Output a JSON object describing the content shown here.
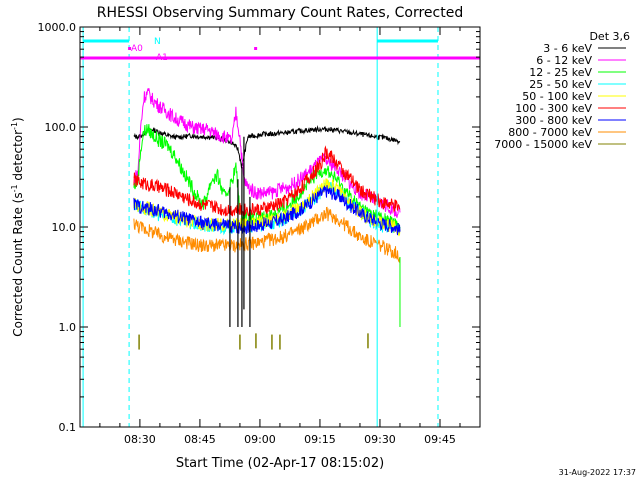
{
  "chart_data": {
    "type": "line",
    "title": "RHESSI Observing Summary Count Rates, Corrected",
    "xlabel": "Start Time (02-Apr-17 08:15:02)",
    "ylabel_main": "Corrected Count Rate (s",
    "ylabel_sup": "-1",
    "ylabel_tail": " detector",
    "ylabel_close": ")",
    "yscale": "log",
    "ylim": [
      0.1,
      1000
    ],
    "xlim": [
      "08:15:02",
      "09:55:00"
    ],
    "xlim_minutes": [
      0.03,
      100.0
    ],
    "y_ticks": [
      {
        "value": 0.1,
        "label": "0.1"
      },
      {
        "value": 1,
        "label": "1.0"
      },
      {
        "value": 10,
        "label": "10.0"
      },
      {
        "value": 100,
        "label": "100.0"
      },
      {
        "value": 1000,
        "label": "1000.0"
      }
    ],
    "x_ticks": [
      {
        "minute": 15,
        "label": "08:30"
      },
      {
        "minute": 30,
        "label": "08:45"
      },
      {
        "minute": 45,
        "label": "09:00"
      },
      {
        "minute": 60,
        "label": "09:15"
      },
      {
        "minute": 75,
        "label": "09:30"
      },
      {
        "minute": 90,
        "label": "09:45"
      }
    ],
    "detectors_label": "Det 3,6",
    "footer_date": "31-Aug-2022 17:37",
    "series": [
      {
        "name": "3 - 6 keV",
        "color": "#000000",
        "points": [
          [
            13.5,
            80
          ],
          [
            15,
            80
          ],
          [
            16.5,
            90
          ],
          [
            18,
            95
          ],
          [
            20,
            88
          ],
          [
            22,
            82
          ],
          [
            24,
            79
          ],
          [
            26,
            80
          ],
          [
            28,
            82
          ],
          [
            30,
            80
          ],
          [
            32,
            80
          ],
          [
            34,
            78
          ],
          [
            36,
            75
          ],
          [
            38,
            70
          ],
          [
            39.5,
            60
          ],
          [
            40.5,
            40
          ],
          [
            42,
            80
          ],
          [
            44,
            82
          ],
          [
            46,
            85
          ],
          [
            48,
            85
          ],
          [
            50,
            87
          ],
          [
            52,
            88
          ],
          [
            54,
            90
          ],
          [
            56,
            92
          ],
          [
            58,
            94
          ],
          [
            60,
            95
          ],
          [
            62,
            95
          ],
          [
            64,
            93
          ],
          [
            66,
            90
          ],
          [
            68,
            87
          ],
          [
            70,
            85
          ],
          [
            72,
            82
          ],
          [
            74,
            80
          ],
          [
            76,
            78
          ],
          [
            78,
            75
          ],
          [
            80,
            72
          ]
        ]
      },
      {
        "name": "6 - 12 keV",
        "color": "#ff00ff",
        "points": [
          [
            13.5,
            30
          ],
          [
            14.5,
            35
          ],
          [
            15.2,
            100
          ],
          [
            16,
            200
          ],
          [
            17,
            220
          ],
          [
            18,
            190
          ],
          [
            20,
            160
          ],
          [
            22,
            140
          ],
          [
            24,
            120
          ],
          [
            26,
            110
          ],
          [
            28,
            100
          ],
          [
            30,
            95
          ],
          [
            32,
            95
          ],
          [
            34,
            85
          ],
          [
            36,
            80
          ],
          [
            38,
            72
          ],
          [
            39,
            140
          ],
          [
            40,
            80
          ],
          [
            41,
            30
          ],
          [
            42,
            25
          ],
          [
            44,
            22
          ],
          [
            46,
            22
          ],
          [
            48,
            22
          ],
          [
            50,
            24
          ],
          [
            52,
            25
          ],
          [
            54,
            28
          ],
          [
            56,
            32
          ],
          [
            58,
            38
          ],
          [
            60,
            45
          ],
          [
            61,
            47
          ],
          [
            62,
            45
          ],
          [
            64,
            40
          ],
          [
            66,
            32
          ],
          [
            68,
            26
          ],
          [
            70,
            22
          ],
          [
            72,
            20
          ],
          [
            74,
            18
          ],
          [
            76,
            17
          ],
          [
            78,
            15
          ],
          [
            80,
            14
          ]
        ]
      },
      {
        "name": "12 - 25 keV",
        "color": "#00ff00",
        "points": [
          [
            13.5,
            25
          ],
          [
            14.5,
            30
          ],
          [
            15.2,
            60
          ],
          [
            16,
            90
          ],
          [
            17,
            95
          ],
          [
            18,
            85
          ],
          [
            20,
            72
          ],
          [
            22,
            65
          ],
          [
            24,
            50
          ],
          [
            26,
            35
          ],
          [
            28,
            25
          ],
          [
            30,
            18
          ],
          [
            31,
            17
          ],
          [
            33,
            30
          ],
          [
            34.5,
            32
          ],
          [
            36,
            20
          ],
          [
            37.5,
            25
          ],
          [
            39,
            40
          ],
          [
            40,
            15
          ],
          [
            41,
            13
          ],
          [
            43,
            12
          ],
          [
            45,
            12
          ],
          [
            47,
            13
          ],
          [
            49,
            14
          ],
          [
            51,
            15
          ],
          [
            53,
            18
          ],
          [
            55,
            22
          ],
          [
            57,
            27
          ],
          [
            59,
            33
          ],
          [
            61,
            38
          ],
          [
            62,
            36
          ],
          [
            64,
            30
          ],
          [
            66,
            24
          ],
          [
            68,
            19
          ],
          [
            70,
            16
          ],
          [
            72,
            14
          ],
          [
            74,
            13
          ],
          [
            76,
            12
          ],
          [
            78,
            11
          ],
          [
            80,
            10
          ]
        ]
      },
      {
        "name": "25 - 50 keV",
        "color": "#00ffff",
        "points": [
          [
            13.5,
            17
          ],
          [
            15,
            16
          ],
          [
            18,
            14
          ],
          [
            21,
            13
          ],
          [
            24,
            12
          ],
          [
            27,
            11
          ],
          [
            30,
            10.5
          ],
          [
            33,
            10
          ],
          [
            36,
            10
          ],
          [
            39,
            10
          ],
          [
            42,
            10
          ],
          [
            45,
            10.5
          ],
          [
            48,
            11
          ],
          [
            51,
            12
          ],
          [
            54,
            14
          ],
          [
            57,
            17
          ],
          [
            60,
            22
          ],
          [
            61.5,
            26
          ],
          [
            63,
            25
          ],
          [
            65,
            22
          ],
          [
            67,
            18
          ],
          [
            69,
            15
          ],
          [
            71,
            13
          ],
          [
            73,
            11.5
          ],
          [
            75,
            10.5
          ],
          [
            77,
            10
          ],
          [
            79,
            9.5
          ],
          [
            80,
            9
          ]
        ]
      },
      {
        "name": "50 - 100 keV",
        "color": "#ffff00",
        "points": [
          [
            13.5,
            17
          ],
          [
            15,
            16
          ],
          [
            18,
            15
          ],
          [
            21,
            13.5
          ],
          [
            24,
            12.5
          ],
          [
            27,
            11.5
          ],
          [
            30,
            11
          ],
          [
            33,
            10.5
          ],
          [
            36,
            10.5
          ],
          [
            39,
            10.5
          ],
          [
            42,
            10.5
          ],
          [
            45,
            11
          ],
          [
            48,
            12
          ],
          [
            51,
            13
          ],
          [
            54,
            15
          ],
          [
            57,
            18
          ],
          [
            60,
            24
          ],
          [
            61.5,
            28
          ],
          [
            63,
            26
          ],
          [
            65,
            22
          ],
          [
            67,
            18
          ],
          [
            69,
            15
          ],
          [
            71,
            13
          ],
          [
            73,
            12
          ],
          [
            75,
            11
          ],
          [
            77,
            10.5
          ],
          [
            79,
            10
          ],
          [
            80,
            9.5
          ]
        ]
      },
      {
        "name": "100 - 300 keV",
        "color": "#ff0000",
        "points": [
          [
            13.5,
            30
          ],
          [
            15,
            28
          ],
          [
            18,
            26
          ],
          [
            21,
            24
          ],
          [
            24,
            22
          ],
          [
            27,
            19
          ],
          [
            30,
            17
          ],
          [
            33,
            16
          ],
          [
            36,
            15
          ],
          [
            39,
            15
          ],
          [
            42,
            15
          ],
          [
            45,
            15
          ],
          [
            48,
            16
          ],
          [
            51,
            18
          ],
          [
            54,
            22
          ],
          [
            57,
            30
          ],
          [
            60,
            42
          ],
          [
            61.5,
            55
          ],
          [
            63,
            50
          ],
          [
            65,
            40
          ],
          [
            67,
            32
          ],
          [
            69,
            26
          ],
          [
            71,
            22
          ],
          [
            73,
            20
          ],
          [
            75,
            18
          ],
          [
            77,
            17
          ],
          [
            79,
            16
          ],
          [
            80,
            15
          ]
        ]
      },
      {
        "name": "300 - 800 keV",
        "color": "#0000ff",
        "points": [
          [
            13.5,
            17
          ],
          [
            15,
            16
          ],
          [
            18,
            15
          ],
          [
            21,
            14
          ],
          [
            24,
            13
          ],
          [
            27,
            12
          ],
          [
            30,
            11
          ],
          [
            33,
            10.5
          ],
          [
            36,
            10.5
          ],
          [
            39,
            10
          ],
          [
            42,
            10
          ],
          [
            45,
            10.5
          ],
          [
            48,
            11
          ],
          [
            51,
            12
          ],
          [
            54,
            14
          ],
          [
            57,
            17
          ],
          [
            60,
            21
          ],
          [
            61.5,
            23
          ],
          [
            63,
            22
          ],
          [
            65,
            20
          ],
          [
            67,
            17
          ],
          [
            69,
            15
          ],
          [
            71,
            13
          ],
          [
            73,
            12
          ],
          [
            75,
            11
          ],
          [
            77,
            10.5
          ],
          [
            79,
            10
          ],
          [
            80,
            9
          ]
        ]
      },
      {
        "name": "800 - 7000 keV",
        "color": "#ff8c00",
        "points": [
          [
            13.5,
            11
          ],
          [
            15,
            10
          ],
          [
            18,
            9
          ],
          [
            21,
            8
          ],
          [
            24,
            7.5
          ],
          [
            27,
            7
          ],
          [
            30,
            6.5
          ],
          [
            33,
            6.5
          ],
          [
            36,
            6.5
          ],
          [
            39,
            6.5
          ],
          [
            42,
            6.8
          ],
          [
            45,
            7
          ],
          [
            48,
            7.5
          ],
          [
            51,
            8
          ],
          [
            54,
            9
          ],
          [
            57,
            10.5
          ],
          [
            60,
            12.5
          ],
          [
            61.5,
            13.5
          ],
          [
            63,
            13
          ],
          [
            65,
            11.5
          ],
          [
            67,
            10
          ],
          [
            69,
            8.5
          ],
          [
            71,
            7.5
          ],
          [
            73,
            7
          ],
          [
            75,
            6.5
          ],
          [
            77,
            6
          ],
          [
            79,
            5.5
          ],
          [
            80,
            5
          ]
        ]
      },
      {
        "name": "7000 - 15000 keV",
        "color": "#808000",
        "points": [
          [
            14.8,
            0.7
          ],
          [
            40,
            0.7
          ],
          [
            44,
            0.72
          ],
          [
            48,
            0.7
          ],
          [
            50,
            0.7
          ],
          [
            72,
            0.72
          ]
        ]
      }
    ]
  },
  "annotations": {
    "attenuator_label_a0": "A0",
    "attenuator_label_a1": "A1",
    "night_label": "N",
    "color_magenta": "#ff00ff",
    "color_cyan": "#00ffff"
  }
}
